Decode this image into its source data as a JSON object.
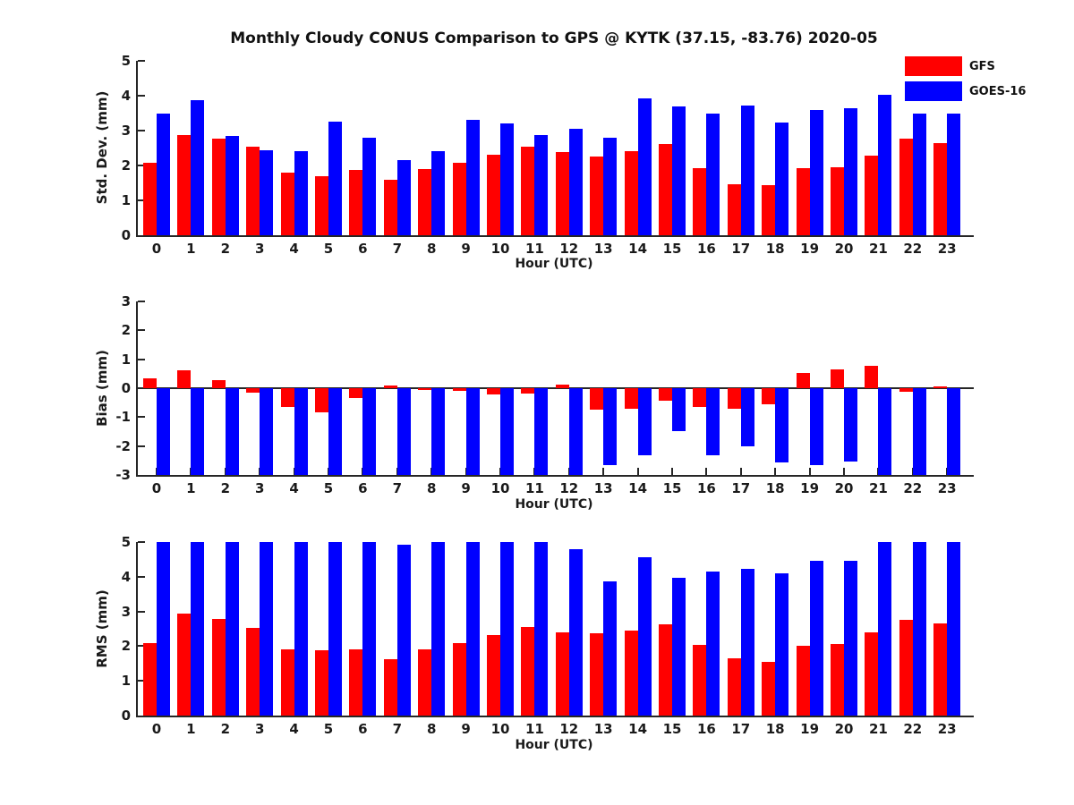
{
  "title": "Monthly Cloudy CONUS Comparison to GPS @ KYTK (37.15, -83.76) 2020-05",
  "legend": {
    "position": "top-right",
    "items": [
      {
        "label": "GFS",
        "color": "#ff0000"
      },
      {
        "label": "GOES-16",
        "color": "#0000ff"
      }
    ]
  },
  "colors": {
    "gfs_red": "#ff0000",
    "goes_blue": "#0000ff",
    "axis": "#262626",
    "text": "#1a1a1a"
  },
  "chart_data": [
    {
      "type": "bar",
      "panel": "std_dev",
      "title": "",
      "ylabel": "Std. Dev. (mm)",
      "xlabel": "Hour (UTC)",
      "ylim": [
        0,
        5
      ],
      "yticks": [
        0,
        1,
        2,
        3,
        4,
        5
      ],
      "grid": false,
      "categories": [
        0,
        1,
        2,
        3,
        4,
        5,
        6,
        7,
        8,
        9,
        10,
        11,
        12,
        13,
        14,
        15,
        16,
        17,
        18,
        19,
        20,
        21,
        22,
        23
      ],
      "series": [
        {
          "name": "GFS",
          "color": "#ff0000",
          "values": [
            2.08,
            2.88,
            2.78,
            2.53,
            1.8,
            1.7,
            1.87,
            1.6,
            1.9,
            2.08,
            2.32,
            2.55,
            2.38,
            2.26,
            2.4,
            2.62,
            1.92,
            1.47,
            1.43,
            1.92,
            1.95,
            2.27,
            2.77,
            2.65
          ]
        },
        {
          "name": "GOES-16",
          "color": "#0000ff",
          "values": [
            3.48,
            3.87,
            2.85,
            2.43,
            2.42,
            3.25,
            2.8,
            2.16,
            2.42,
            3.32,
            3.21,
            2.86,
            3.04,
            2.79,
            3.92,
            3.7,
            3.48,
            3.71,
            3.22,
            3.58,
            3.65,
            4.03,
            3.5,
            3.5
          ]
        }
      ]
    },
    {
      "type": "bar",
      "panel": "bias",
      "title": "",
      "ylabel": "Bias (mm)",
      "xlabel": "Hour (UTC)",
      "ylim": [
        -3,
        3
      ],
      "yticks": [
        -3,
        -2,
        -1,
        0,
        1,
        2,
        3
      ],
      "grid": false,
      "zero_line": true,
      "categories": [
        0,
        1,
        2,
        3,
        4,
        5,
        6,
        7,
        8,
        9,
        10,
        11,
        12,
        13,
        14,
        15,
        16,
        17,
        18,
        19,
        20,
        21,
        22,
        23
      ],
      "series": [
        {
          "name": "GFS",
          "color": "#ff0000",
          "values": [
            0.35,
            0.62,
            0.27,
            -0.15,
            -0.65,
            -0.82,
            -0.35,
            0.1,
            -0.05,
            -0.1,
            -0.22,
            -0.2,
            0.12,
            -0.73,
            -0.7,
            -0.42,
            -0.65,
            -0.7,
            -0.55,
            0.54,
            0.66,
            0.77,
            -0.12,
            0.05
          ]
        },
        {
          "name": "GOES-16",
          "color": "#0000ff",
          "values": [
            -3.0,
            -3.0,
            -3.0,
            -3.0,
            -3.0,
            -3.0,
            -3.0,
            -3.0,
            -3.0,
            -3.0,
            -3.0,
            -3.0,
            -3.0,
            -2.66,
            -2.33,
            -1.47,
            -2.33,
            -2.0,
            -2.56,
            -2.66,
            -2.54,
            -3.0,
            -3.0,
            -3.0
          ]
        }
      ]
    },
    {
      "type": "bar",
      "panel": "rms",
      "title": "",
      "ylabel": "RMS (mm)",
      "xlabel": "Hour (UTC)",
      "ylim": [
        0,
        5
      ],
      "yticks": [
        0,
        1,
        2,
        3,
        4,
        5
      ],
      "grid": false,
      "categories": [
        0,
        1,
        2,
        3,
        4,
        5,
        6,
        7,
        8,
        9,
        10,
        11,
        12,
        13,
        14,
        15,
        16,
        17,
        18,
        19,
        20,
        21,
        22,
        23
      ],
      "series": [
        {
          "name": "GFS",
          "color": "#ff0000",
          "values": [
            2.1,
            2.95,
            2.79,
            2.52,
            1.91,
            1.87,
            1.9,
            1.63,
            1.91,
            2.1,
            2.33,
            2.56,
            2.4,
            2.37,
            2.46,
            2.64,
            2.04,
            1.66,
            1.55,
            2.01,
            2.06,
            2.39,
            2.76,
            2.65
          ]
        },
        {
          "name": "GOES-16",
          "color": "#0000ff",
          "values": [
            5.0,
            5.0,
            5.0,
            5.0,
            5.0,
            5.0,
            5.0,
            4.93,
            5.0,
            5.0,
            5.0,
            5.0,
            4.79,
            3.86,
            4.55,
            3.98,
            4.15,
            4.22,
            4.11,
            4.47,
            4.47,
            5.0,
            5.0,
            5.0
          ]
        }
      ]
    }
  ]
}
